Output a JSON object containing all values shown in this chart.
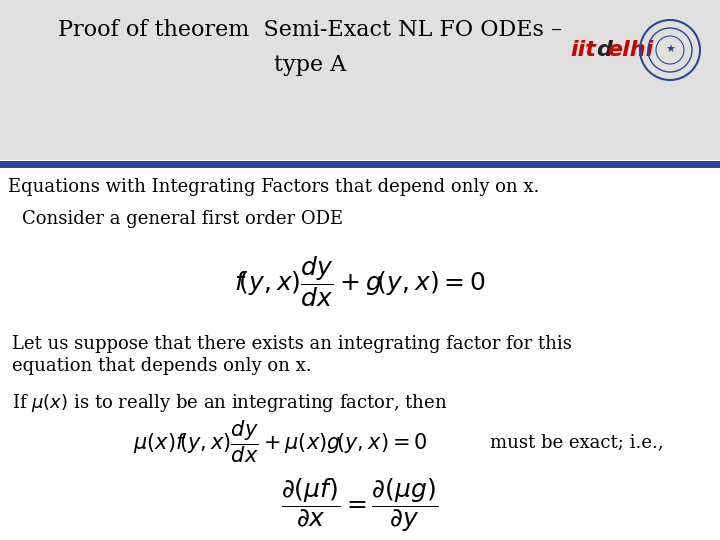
{
  "title_line1": "Proof of theorem  Semi-Exact NL FO ODEs –",
  "title_line2": "type A",
  "subtitle": "Equations with Integrating Factors that depend only on x.",
  "text1": "Consider a general first order ODE",
  "text2a": "Let us suppose that there exists an integrating factor for this",
  "text2b": "equation that depends only on x.",
  "text3": "If $\\mu(x)$ is to really be an integrating factor, then",
  "eq2_note": "must be exact; i.e.,",
  "bg_color": "#ffffff",
  "header_bg": "#e8e8e8",
  "separator_color": "#2e4099",
  "title_fontsize": 16,
  "body_fontsize": 13,
  "eq_fontsize": 15,
  "iit_color": "#cc0000",
  "delhi_color": "#cc0000",
  "d_color": "#222222"
}
